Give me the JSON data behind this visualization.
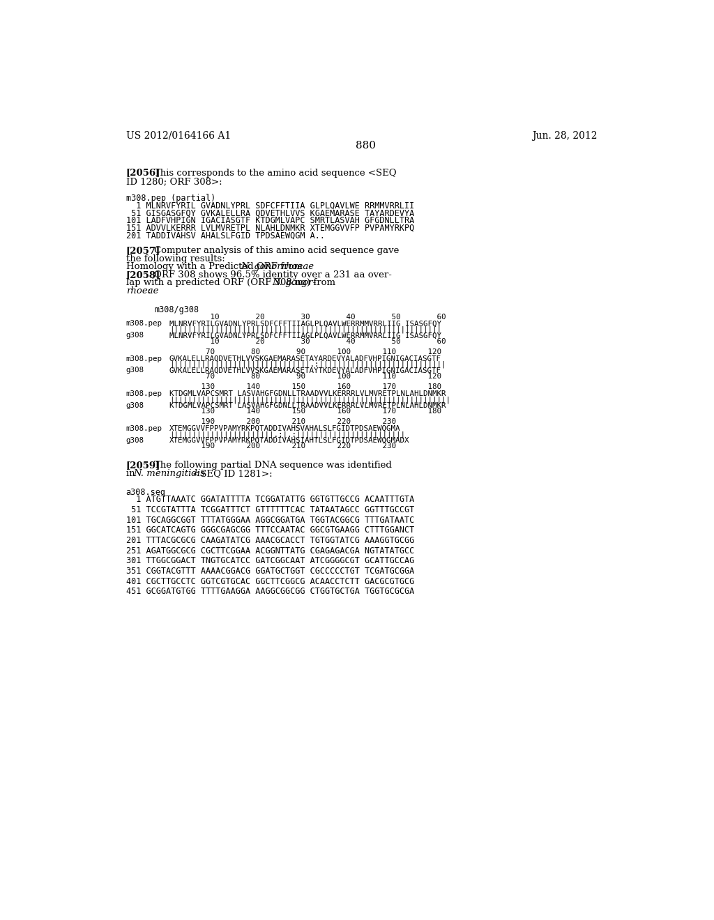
{
  "bg_color": "#ffffff",
  "header_left": "US 2012/0164166 A1",
  "header_right": "Jun. 28, 2012",
  "page_number": "880",
  "seq_header": "m308.pep (partial)",
  "seq_lines": [
    "  1 MLNRVFYRIL GVADNLYPRL SDFCFFTIIA GLPLQAVLWE RRMMVRRLII",
    " 51 GISGASGFQY GVKALELLRA QDVETHLVVS KGAEMARASE TAYARDEVYA",
    "101 LADFVHPIGN IGACIASGTF KTDGMLVAPC SMRTLASVAH GFGDNLLTRA",
    "151 ADVVLKERRR LVLMVRETPL NLAHLDNMKR XTEMGGVVFP PVPAMYRKPQ",
    "201 TADDIVAHSV AHALSLFGID TPDSAEWQGM A.."
  ],
  "align_header": "m308/g308",
  "block1_numtop": "         10        20        30        40        50        60",
  "block1_line1": "MLNRVFYRILGVADNLYPRLSDFCFFTIIAGLPLQAVLWERRMMVRRLIIG ISASGFQY",
  "block1_bars": "||||||||||||||||||||||||||||||||||||||||||||||||||||||||||||",
  "block1_line2": "MLNRVFYRILGVADNLYPRLSDFCFFTIIAGLPLQAVLWERRMMVRRLIIG ISASGFQY",
  "block1_numbot": "         10        20        30        40        50        60",
  "block2_numtop": "        70        80        90       100       110       120",
  "block2_line1": "GVKALELLRAQDVETHLVVSKGAEMARASETAYARDEVYALADFVHPIGNIGACIASGTF",
  "block2_bars": "|||||||||||||||||||||||||||||||.:||||||||||||||||||||||||||||",
  "block2_line2": "GVKALELLRAQDVETHLVVSKGAEMARASETAYTKDEVYALADFVHPIGNIGACIASGTF",
  "block2_numbot": "        70        80        90       100       110       120",
  "block3_numtop": "       130       140       150       160       170       180",
  "block3_line1": "KTDGMLVAPCSMRT LASVAHGFGDNLLTRAADVVLKERRRLVLMVRETPLNLAHLDNMKR",
  "block3_bars": "||||||||||||||||||||||||||||||||||||||||||||||||||||||||||||||",
  "block3_line2": "KTDGMLVAPCSMRT LASVAHGFGDNLLTRAADVVLKERRRLVLMVRETPLNLAHLDNMKR",
  "block3_numbot": "       130       140       150       160       170       180",
  "block4_numtop": "       190       200       210       220       230",
  "block4_line1": "XTEMGGVVFPPVPAMYRKPQTADDIVAHSVAHALSLFGIDTPDSAEWQGMA",
  "block4_bars": "|||||||||||||||||||||||.:|.:||||||||||||||||||||||||",
  "block4_line2": "XTEMGGVVFPPVPAMYRKPQTADDIVAHSIAHTLSLFGIDTPDSAEWQGMADX",
  "block4_numbot": "       190       200       210       220       230",
  "dna_header": "a308.seq",
  "dna_lines": [
    "  1 ATGTTAAATC GGATATTTTA TCGGATATTG GGTGTTGCCG ACAATTTGTA",
    " 51 TCCGTATTTA TCGGATTTCT GTTTTTTCAC TATAATAGCC GGTTTGCCGT",
    "101 TGCAGGCGGT TTTATGGGAA AGGCGGATGA TGGTACGGCG TTTGATAATC",
    "151 GGCATCAGTG GGGCGAGCGG TTTCCAATAC GGCGTGAAGG CTTTGGANCT",
    "201 TTTACGCGCG CAAGATATCG AAACGCACCT TGTGGTATCG AAAGGTGCGG",
    "251 AGATGGCGCG CGCTTCGGAA ACGGNTTATG CGAGAGACGA NGTATATGCC",
    "301 TTGGCGGACT TNGTGCATCC GATCGGCAAT ATCGGGGCGT GCATTGCCAG",
    "351 CGGTACGTTT AAAACGGACG GGATGCTGGT CGCCCCCTGT TCGATGCGGA",
    "401 CGCTTGCCTC GGTCGTGCAC GGCTTCGGCG ACAACCTCTT GACGCGTGCG",
    "451 GCGGATGTGG TTTTGAAGGA AAGGCGGCGG CTGGTGCTGA TGGTGCGCGA"
  ]
}
